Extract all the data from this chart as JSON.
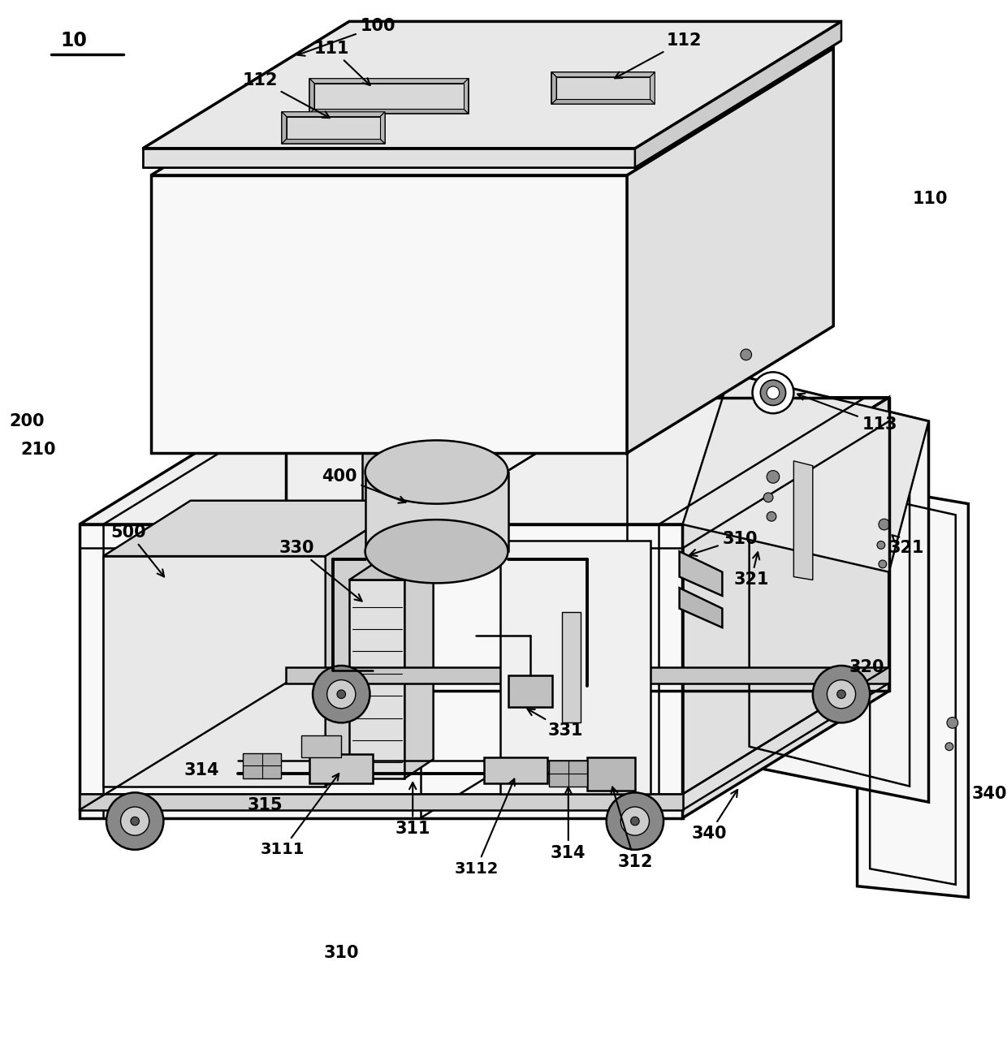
{
  "bg_color": "#ffffff",
  "lw": 1.8,
  "blw": 2.5,
  "fig_width": 12.4,
  "fig_height": 12.96,
  "face_top": "#efefef",
  "face_front": "#f8f8f8",
  "face_right": "#e0e0e0",
  "face_dark": "#cccccc",
  "inner_face": "#f0f0f0"
}
